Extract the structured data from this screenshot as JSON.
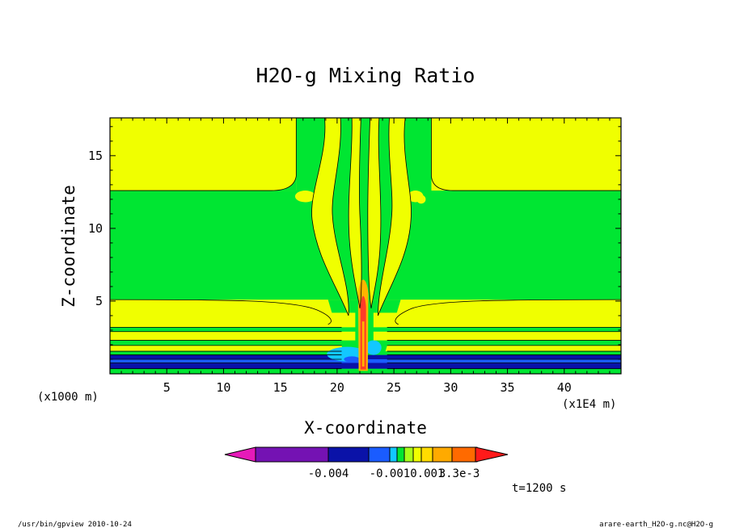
{
  "chart_data": {
    "type": "contour",
    "title": "H2O-g Mixing Ratio",
    "xlabel": "X-coordinate",
    "ylabel": "Z-coordinate",
    "x_unit_label": "(x1E4 m)",
    "y_unit_label": "(x1000 m)",
    "xlim": [
      0,
      45
    ],
    "ylim": [
      0,
      17.6
    ],
    "x_ticks": [
      5,
      10,
      15,
      20,
      25,
      30,
      35,
      40
    ],
    "y_ticks": [
      5,
      10,
      15
    ],
    "colorbar": {
      "tick_labels": [
        "-0.004",
        "-0.0010.001",
        "3.3e-3"
      ],
      "colors": [
        "#e61ab9",
        "#7412b3",
        "#0a12a8",
        "#1a5cff",
        "#12c8ff",
        "#00e632",
        "#a8ff1a",
        "#f0ff00",
        "#ffdc00",
        "#ffaa00",
        "#ff6a00",
        "#ff1a1a"
      ]
    },
    "time_label": "t=1200 s",
    "field_colors": {
      "green": "#00e632",
      "yellow": "#f0ff00",
      "orange": "#ffb400",
      "red": "#ff3c28",
      "cyan": "#12c8ff",
      "blue": "#1a5cff",
      "darkblue": "#0a12a8"
    }
  },
  "footer": {
    "left": "/usr/bin/gpview  2010-10-24",
    "right": "arare-earth_H2O-g.nc@H2O-g"
  }
}
